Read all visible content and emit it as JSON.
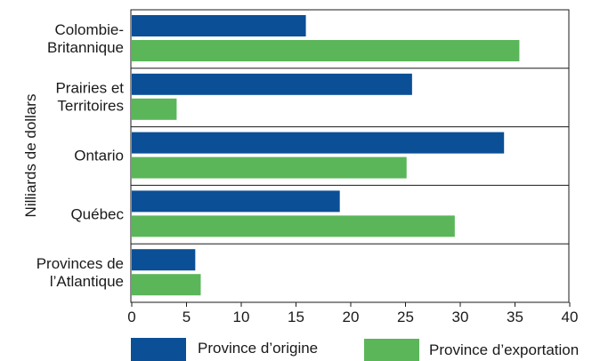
{
  "chart_data": {
    "type": "bar",
    "orientation": "horizontal",
    "ylabel": "Nilliards de dollars",
    "xlabel": "",
    "categories": [
      [
        "Colombie-",
        "Britannique"
      ],
      [
        "Prairies et",
        "Territoires"
      ],
      [
        "Ontario"
      ],
      [
        "Québec"
      ],
      [
        "Provinces de",
        "l’Atlantique"
      ]
    ],
    "series": [
      {
        "name": "Province d’origine",
        "color": "#0b4f96",
        "values": [
          15.9,
          25.6,
          34.0,
          19.0,
          5.8
        ]
      },
      {
        "name": "Province d’exportation",
        "color": "#5bb65a",
        "values": [
          35.4,
          4.1,
          25.1,
          29.5,
          6.3
        ]
      }
    ],
    "xlim": [
      0,
      40
    ],
    "xticks": [
      "0",
      "5",
      "10",
      "15",
      "20",
      "25",
      "30",
      "35",
      "40"
    ],
    "grid": "horizontal separators between categories",
    "legend": "bottom"
  }
}
